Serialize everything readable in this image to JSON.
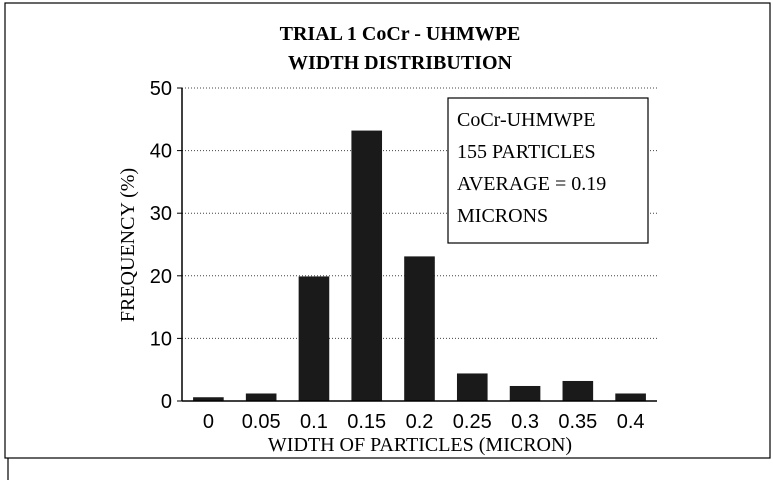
{
  "chart_data": {
    "type": "bar",
    "title": [
      "TRIAL 1  CoCr - UHMWPE",
      "WIDTH DISTRIBUTION"
    ],
    "x_label": "WIDTH OF PARTICLES (MICRON)",
    "y_label": "FREQUENCY (%)",
    "annotation": [
      "CoCr-UHMWPE",
      "155 PARTICLES",
      "AVERAGE = 0.19",
      "MICRONS"
    ],
    "categories": [
      "0",
      "0.05",
      "0.1",
      "0.15",
      "0.2",
      "0.25",
      "0.3",
      "0.35",
      "0.4"
    ],
    "values": [
      0.6,
      1.2,
      19.9,
      43.2,
      23.1,
      4.4,
      2.4,
      3.2,
      1.2
    ],
    "color": "#1a1a1a",
    "ylim": [
      0,
      50
    ],
    "yticks": [
      0,
      10,
      20,
      30,
      40,
      50
    ],
    "grid": true
  }
}
